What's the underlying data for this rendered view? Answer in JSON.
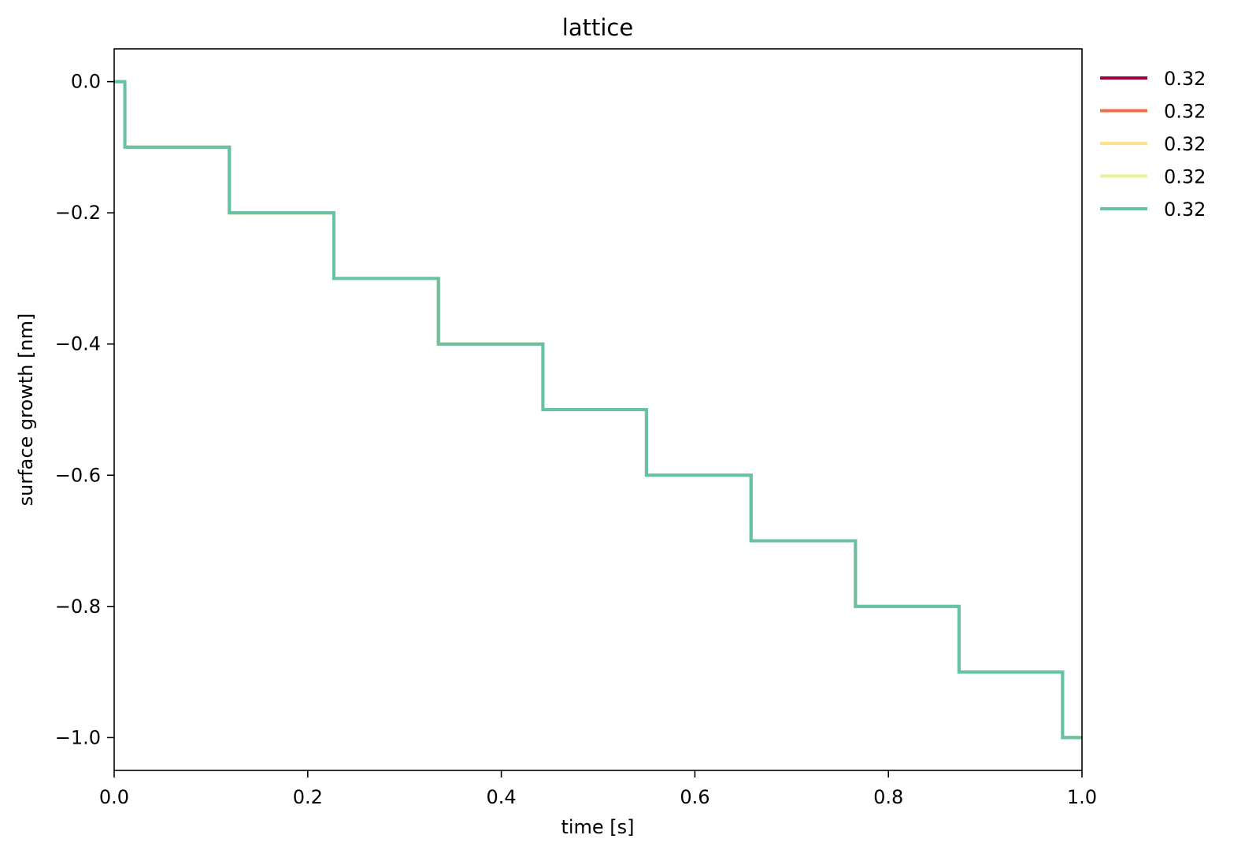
{
  "chart_data": {
    "type": "line",
    "title": "lattice",
    "xlabel": "time [s]",
    "ylabel": "surface growth [nm]",
    "xlim": [
      0.0,
      1.0
    ],
    "ylim": [
      -1.05,
      0.05
    ],
    "xticks": [
      0.0,
      0.2,
      0.4,
      0.6,
      0.8,
      1.0
    ],
    "xtick_labels": [
      "0.0",
      "0.2",
      "0.4",
      "0.6",
      "0.8",
      "1.0"
    ],
    "yticks": [
      0.0,
      -0.2,
      -0.4,
      -0.6,
      -0.8,
      -1.0
    ],
    "ytick_labels": [
      "0.0",
      "−0.2",
      "−0.4",
      "−0.6",
      "−0.8",
      "−1.0"
    ],
    "grid": false,
    "legend_position": "outside-top-right",
    "step_x": [
      0.0,
      0.011,
      0.119,
      0.227,
      0.335,
      0.443,
      0.55,
      0.658,
      0.766,
      0.873,
      0.98,
      1.0
    ],
    "step_y": [
      0.0,
      -0.1,
      -0.2,
      -0.3,
      -0.4,
      -0.5,
      -0.6,
      -0.7,
      -0.8,
      -0.9,
      -1.0,
      -1.0
    ],
    "series": [
      {
        "name": "0.32",
        "color": "#9e0142"
      },
      {
        "name": "0.32",
        "color": "#f46d43"
      },
      {
        "name": "0.32",
        "color": "#fee08b"
      },
      {
        "name": "0.32",
        "color": "#e6f598"
      },
      {
        "name": "0.32",
        "color": "#66c2a5"
      }
    ]
  }
}
